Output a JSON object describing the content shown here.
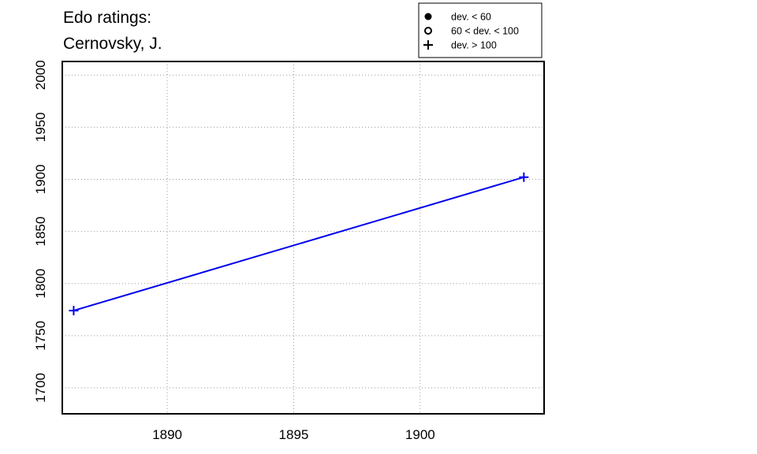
{
  "chart_data": {
    "type": "line",
    "title_lines": [
      "Edo ratings:",
      "Cernovsky, J."
    ],
    "xlabel": "",
    "ylabel": "",
    "xlim": [
      1885.85,
      1904.9
    ],
    "ylim": [
      1675,
      2013
    ],
    "x_ticks": [
      1890,
      1895,
      1900
    ],
    "y_ticks": [
      1700,
      1750,
      1800,
      1850,
      1900,
      1950,
      2000
    ],
    "grid": true,
    "legend": {
      "placement": "top-right",
      "entries": [
        {
          "marker": "filled-circle",
          "label": "dev. < 60"
        },
        {
          "marker": "open-circle",
          "label": "60 < dev. < 100"
        },
        {
          "marker": "plus",
          "label": "dev. > 100"
        }
      ]
    },
    "series": [
      {
        "color": "#0000ee",
        "marker": "plus",
        "points": [
          {
            "x": 1886.3,
            "y": 1774
          },
          {
            "x": 1904.1,
            "y": 1902
          }
        ]
      }
    ]
  }
}
